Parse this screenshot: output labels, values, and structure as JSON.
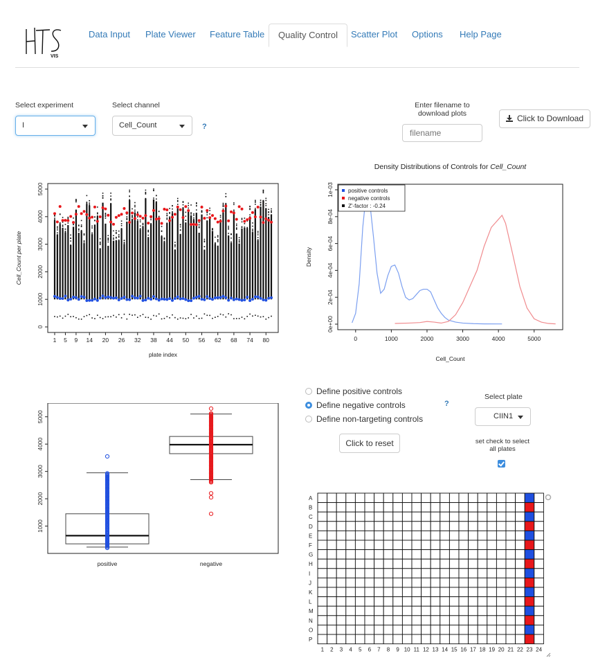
{
  "app": {
    "logo_text": "HTS",
    "logo_sub": "VIS"
  },
  "nav": {
    "tabs": [
      {
        "label": "Data Input",
        "active": false
      },
      {
        "label": "Plate Viewer",
        "active": false
      },
      {
        "label": "Feature Table",
        "active": false
      },
      {
        "label": "Quality Control",
        "active": true
      },
      {
        "label": "Scatter Plot",
        "active": false
      },
      {
        "label": "Options",
        "active": false
      },
      {
        "label": "Help Page",
        "active": false
      }
    ]
  },
  "controls": {
    "experiment_label": "Select experiment",
    "experiment_value": "I",
    "channel_label": "Select channel",
    "channel_value": "Cell_Count",
    "help_mark": "?",
    "filename_label": "Enter filename to download plots",
    "filename_placeholder": "filename",
    "download_label": "Click to Download"
  },
  "control_definition": {
    "options": [
      {
        "label": "Define positive controls",
        "selected": false
      },
      {
        "label": "Define negative controls",
        "selected": true
      },
      {
        "label": "Define non-targeting controls",
        "selected": false
      }
    ],
    "help_mark": "?",
    "reset_label": "Click to reset",
    "plate_label": "Select plate",
    "plate_value": "CIIN1",
    "check_label": "set check to select all plates",
    "check_all": true
  },
  "colors": {
    "positive": "#1f4fe0",
    "negative": "#e8171b",
    "accent": "#337ab7"
  },
  "chart_data": [
    {
      "type": "scatter",
      "name": "per-plate boxplot",
      "xlabel": "plate index",
      "ylabel": "Cell_Count per plate",
      "ylim": [
        0,
        5000
      ],
      "yticks": [
        0,
        1000,
        2000,
        3000,
        4000,
        5000
      ],
      "xticks": [
        1,
        5,
        9,
        14,
        20,
        26,
        32,
        38,
        44,
        50,
        56,
        62,
        68,
        74,
        80
      ],
      "n_plates": 82,
      "positive_series_level": 950,
      "negative_series_level": 3900
    },
    {
      "type": "line",
      "title": "Density Distributions of Controls for",
      "title_italic": "Cell_Count",
      "xlabel": "Cell_Count",
      "ylabel": "Density",
      "xlim": [
        -500,
        5800
      ],
      "ylim": [
        0,
        0.001
      ],
      "xticks": [
        0,
        1000,
        2000,
        3000,
        4000,
        5000
      ],
      "yticks": [
        "0e+00",
        "2e-04",
        "4e-04",
        "6e-04",
        "8e-04",
        "1e-03"
      ],
      "legend": [
        "positive controls",
        "negative controls",
        "Z'-factor : -0.24"
      ],
      "legend_position": "top-left",
      "series": [
        {
          "name": "positive controls",
          "x": [
            -100,
            0,
            100,
            200,
            300,
            400,
            500,
            600,
            700,
            800,
            900,
            1000,
            1100,
            1200,
            1300,
            1400,
            1500,
            1600,
            1700,
            1800,
            1900,
            2000,
            2100,
            2200,
            2300,
            2400,
            2500,
            2600,
            2800,
            3000,
            3300,
            3600,
            4100
          ],
          "y": [
            1e-05,
            8e-05,
            0.0003,
            0.00072,
            0.00098,
            0.0009,
            0.00065,
            0.00038,
            0.00023,
            0.00026,
            0.00036,
            0.00043,
            0.00044,
            0.00038,
            0.00028,
            0.0002,
            0.00018,
            0.00019,
            0.00022,
            0.00025,
            0.00026,
            0.00026,
            0.00024,
            0.00018,
            0.00012,
            8e-05,
            5e-05,
            3e-05,
            1.5e-05,
            8e-06,
            4e-06,
            2e-06,
            1.5e-06
          ]
        },
        {
          "name": "negative controls",
          "x": [
            1100,
            1500,
            1800,
            2000,
            2200,
            2400,
            2600,
            2800,
            3000,
            3200,
            3400,
            3600,
            3800,
            3900,
            4000,
            4100,
            4200,
            4400,
            4600,
            4800,
            5000,
            5200,
            5400,
            5600
          ],
          "y": [
            5e-06,
            8e-06,
            1.2e-05,
            2e-05,
            1.5e-05,
            8e-06,
            2e-05,
            7e-05,
            0.00016,
            0.00028,
            0.0004,
            0.00058,
            0.00072,
            0.00075,
            0.00078,
            0.00081,
            0.00075,
            0.00052,
            0.00028,
            0.00012,
            4e-05,
            1.5e-05,
            5e-06,
            2e-06
          ]
        }
      ]
    },
    {
      "type": "scatter",
      "name": "control boxplot",
      "categories": [
        "positive",
        "negative"
      ],
      "ylim": [
        0,
        5500
      ],
      "yticks": [
        1000,
        2000,
        3000,
        4000,
        5000
      ],
      "positive_box": {
        "min": 230,
        "q1": 350,
        "median": 650,
        "q3": 1450,
        "max": 2950,
        "outliers_high": [
          3550
        ],
        "dense_range": [
          200,
          2950
        ]
      },
      "negative_box": {
        "min": 2700,
        "q1": 3650,
        "median": 3980,
        "q3": 4280,
        "max": 5100,
        "outliers_low": [
          1450,
          2050,
          2200
        ],
        "outliers_high": [
          5300
        ],
        "dense_range": [
          2600,
          5150
        ]
      }
    },
    {
      "type": "heatmap",
      "name": "plate layout",
      "rows": [
        "A",
        "B",
        "C",
        "D",
        "E",
        "F",
        "G",
        "H",
        "I",
        "J",
        "K",
        "L",
        "M",
        "N",
        "O",
        "P"
      ],
      "cols": [
        "1",
        "2",
        "3",
        "4",
        "5",
        "6",
        "7",
        "8",
        "9",
        "10",
        "11",
        "12",
        "13",
        "14",
        "15",
        "16",
        "17",
        "18",
        "19",
        "20",
        "21",
        "22",
        "23",
        "24"
      ],
      "colored_column": 23,
      "column_pattern": [
        "positive",
        "negative",
        "positive",
        "negative",
        "positive",
        "negative",
        "positive",
        "negative",
        "positive",
        "negative",
        "positive",
        "negative",
        "positive",
        "negative",
        "positive",
        "negative"
      ]
    }
  ]
}
